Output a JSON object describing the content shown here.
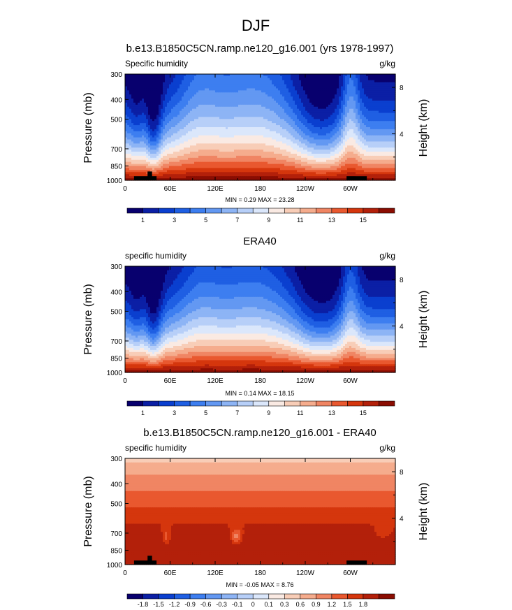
{
  "figure": {
    "title": "DJF"
  },
  "colors": {
    "seq": [
      "#08006e",
      "#0b1fa5",
      "#0a3fcf",
      "#1f5fe3",
      "#3d7ef0",
      "#6398f2",
      "#8db4f5",
      "#b7cff8",
      "#dbe7fb",
      "#faeae3",
      "#f8cdb7",
      "#f5ac8d",
      "#f08563",
      "#e9582f",
      "#d5360d",
      "#b3200a",
      "#8b0d02"
    ],
    "div": [
      "#08006e",
      "#0b1fa5",
      "#0a3fcf",
      "#1f5fe3",
      "#3d7ef0",
      "#6398f2",
      "#8db4f5",
      "#b7cff8",
      "#dbe7fb",
      "#faeae3",
      "#f8cdb7",
      "#f5ac8d",
      "#f08563",
      "#e9582f",
      "#d5360d",
      "#b3200a",
      "#8b0d02"
    ],
    "land": "#000000"
  },
  "panels": [
    {
      "title": "b.e13.B1850C5CN.ramp.ne120_g16.001 (yrs 1978-1997)",
      "left_label": "Specific humidity",
      "right_label": "g/kg",
      "minmax": "MIN =   0.29  MAX =  23.28",
      "y_label": "Pressure (mb)",
      "y2_label": "Height (km)"
    },
    {
      "title": "ERA40",
      "left_label": "specific humidity",
      "right_label": "g/kg",
      "minmax": "MIN =   0.14  MAX =  18.15",
      "y_label": "Pressure (mb)",
      "y2_label": "Height (km)"
    },
    {
      "title": "b.e13.B1850C5CN.ramp.ne120_g16.001 - ERA40",
      "left_label": "specific humidity",
      "right_label": "g/kg",
      "minmax": "MIN =  -0.05  MAX =   8.76",
      "y_label": "Pressure (mb)",
      "y2_label": "Height (km)"
    }
  ],
  "chart_data": [
    {
      "type": "contour",
      "variable": "Specific humidity",
      "units": "g/kg",
      "x_ticks": [
        {
          "lon": 0,
          "label": "0"
        },
        {
          "lon": 60,
          "label": "60E"
        },
        {
          "lon": 120,
          "label": "120E"
        },
        {
          "lon": 180,
          "label": "180"
        },
        {
          "lon": 240,
          "label": "120W"
        },
        {
          "lon": 300,
          "label": "60W"
        }
      ],
      "xlim": [
        0,
        360
      ],
      "y_ticks": [
        {
          "p": 300,
          "label": "300"
        },
        {
          "p": 400,
          "label": "400"
        },
        {
          "p": 500,
          "label": "500"
        },
        {
          "p": 700,
          "label": "700"
        },
        {
          "p": 850,
          "label": "850"
        },
        {
          "p": 1000,
          "label": "1000"
        }
      ],
      "ylim": [
        300,
        1000
      ],
      "y2_ticks": [
        {
          "km": 8,
          "label": "8"
        },
        {
          "km": 4,
          "label": "4"
        }
      ],
      "levels": [
        1,
        2,
        3,
        4,
        5,
        6,
        7,
        8,
        9,
        10,
        11,
        12,
        13,
        14,
        15,
        16
      ],
      "colorbar_labels": [
        "1",
        "3",
        "5",
        "7",
        "9",
        "11",
        "13",
        "15"
      ],
      "land_masks": [
        {
          "lon0": 12,
          "lon1": 42,
          "p_top": 955
        },
        {
          "lon0": 30,
          "lon1": 36,
          "p_top": 905
        },
        {
          "lon0": 295,
          "lon1": 322,
          "p_top": 955
        }
      ],
      "min": 0.29,
      "max": 23.28
    },
    {
      "type": "contour",
      "variable": "specific humidity",
      "units": "g/kg",
      "x_ticks": [
        {
          "lon": 0,
          "label": "0"
        },
        {
          "lon": 60,
          "label": "60E"
        },
        {
          "lon": 120,
          "label": "120E"
        },
        {
          "lon": 180,
          "label": "180"
        },
        {
          "lon": 240,
          "label": "120W"
        },
        {
          "lon": 300,
          "label": "60W"
        }
      ],
      "xlim": [
        0,
        360
      ],
      "y_ticks": [
        {
          "p": 300,
          "label": "300"
        },
        {
          "p": 400,
          "label": "400"
        },
        {
          "p": 500,
          "label": "500"
        },
        {
          "p": 700,
          "label": "700"
        },
        {
          "p": 850,
          "label": "850"
        },
        {
          "p": 1000,
          "label": "1000"
        }
      ],
      "ylim": [
        300,
        1000
      ],
      "y2_ticks": [
        {
          "km": 8,
          "label": "8"
        },
        {
          "km": 4,
          "label": "4"
        }
      ],
      "levels": [
        1,
        2,
        3,
        4,
        5,
        6,
        7,
        8,
        9,
        10,
        11,
        12,
        13,
        14,
        15,
        16
      ],
      "colorbar_labels": [
        "1",
        "3",
        "5",
        "7",
        "9",
        "11",
        "13",
        "15"
      ],
      "land_masks": [],
      "min": 0.14,
      "max": 18.15
    },
    {
      "type": "contour",
      "variable": "specific humidity difference",
      "units": "g/kg",
      "x_ticks": [
        {
          "lon": 0,
          "label": "0"
        },
        {
          "lon": 60,
          "label": "60E"
        },
        {
          "lon": 120,
          "label": "120E"
        },
        {
          "lon": 180,
          "label": "180"
        },
        {
          "lon": 240,
          "label": "120W"
        },
        {
          "lon": 300,
          "label": "60W"
        }
      ],
      "xlim": [
        0,
        360
      ],
      "y_ticks": [
        {
          "p": 300,
          "label": "300"
        },
        {
          "p": 400,
          "label": "400"
        },
        {
          "p": 500,
          "label": "500"
        },
        {
          "p": 700,
          "label": "700"
        },
        {
          "p": 850,
          "label": "850"
        },
        {
          "p": 1000,
          "label": "1000"
        }
      ],
      "ylim": [
        300,
        1000
      ],
      "y2_ticks": [
        {
          "km": 8,
          "label": "8"
        },
        {
          "km": 4,
          "label": "4"
        }
      ],
      "levels": [
        -1.8,
        -1.5,
        -1.2,
        -0.9,
        -0.6,
        -0.3,
        -0.1,
        0,
        0.1,
        0.3,
        0.6,
        0.9,
        1.2,
        1.5,
        1.8
      ],
      "colorbar_labels": [
        "-1.8",
        "-1.5",
        "-1.2",
        "-0.9",
        "-0.6",
        "-0.3",
        "-0.1",
        "0",
        "0.1",
        "0.3",
        "0.6",
        "0.9",
        "1.2",
        "1.5",
        "1.8"
      ],
      "land_masks": [
        {
          "lon0": 12,
          "lon1": 42,
          "p_top": 955
        },
        {
          "lon0": 30,
          "lon1": 36,
          "p_top": 905
        },
        {
          "lon0": 295,
          "lon1": 322,
          "p_top": 955
        }
      ],
      "min": -0.05,
      "max": 8.76
    }
  ]
}
